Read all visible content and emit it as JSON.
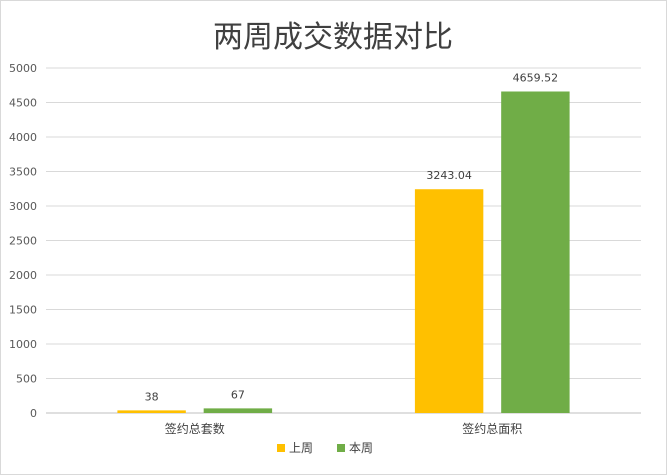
{
  "chart_data": {
    "type": "bar",
    "title": "两周成交数据对比",
    "categories": [
      "签约总套数",
      "签约总面积"
    ],
    "series": [
      {
        "name": "上周",
        "values": [
          38,
          3243.04
        ],
        "labels": [
          "38",
          "3243.04"
        ],
        "color": "#ffc000"
      },
      {
        "name": "本周",
        "values": [
          67,
          4659.52
        ],
        "labels": [
          "67",
          "4659.52"
        ],
        "color": "#70ad47"
      }
    ],
    "ylim": [
      0,
      5000
    ],
    "yticks": [
      "0",
      "500",
      "1000",
      "1500",
      "2000",
      "2500",
      "3000",
      "3500",
      "4000",
      "4500",
      "5000"
    ],
    "grid": true,
    "legend_position": "bottom"
  }
}
